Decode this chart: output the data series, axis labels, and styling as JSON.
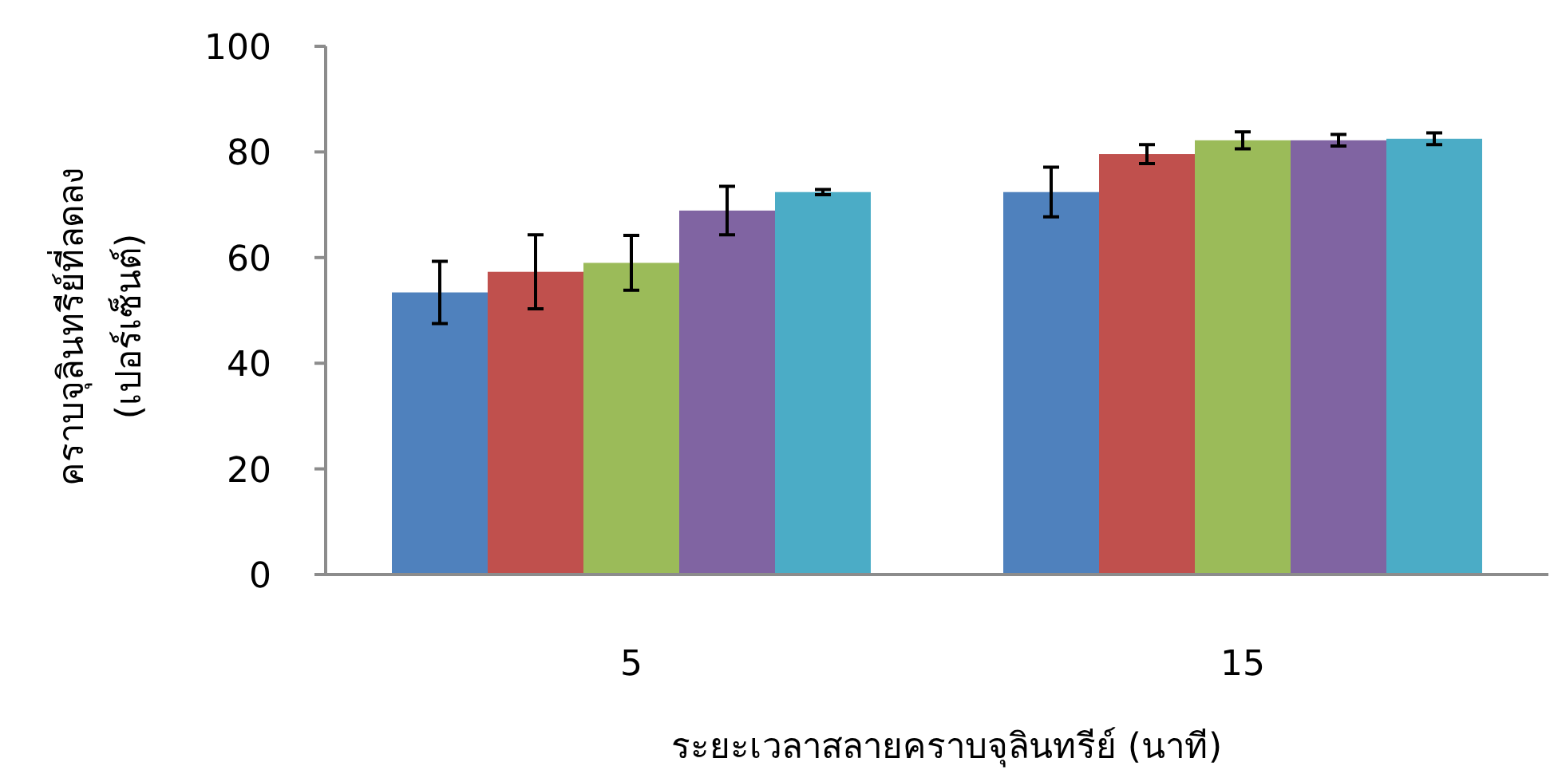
{
  "chart_data": {
    "type": "bar",
    "xlabel": "ระยะเวลาสลายคราบจุลินทรีย์ (นาที)",
    "ylabel": "คราบจุลินทรีย์ที่ลดลง\n(เปอร์เซ็นต์)",
    "categories": [
      "5",
      "15"
    ],
    "ylim": [
      0,
      100
    ],
    "yticks": [
      0,
      20,
      40,
      60,
      80,
      100
    ],
    "series": [
      {
        "color": "#4f81bd",
        "values": [
          53.4,
          72.4
        ],
        "errors": [
          5.9,
          4.7
        ]
      },
      {
        "color": "#c0504d",
        "values": [
          57.3,
          79.6
        ],
        "errors": [
          7,
          1.8
        ]
      },
      {
        "color": "#9bbb59",
        "values": [
          59,
          82.2
        ],
        "errors": [
          5.2,
          1.6
        ]
      },
      {
        "color": "#8064a2",
        "values": [
          68.9,
          82.2
        ],
        "errors": [
          4.6,
          1.1
        ]
      },
      {
        "color": "#4bacc6",
        "values": [
          72.4,
          82.5
        ],
        "errors": [
          0.5,
          1.1
        ]
      }
    ]
  }
}
